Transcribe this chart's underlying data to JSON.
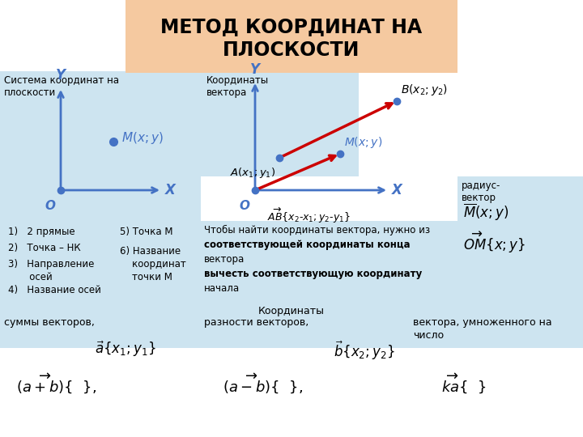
{
  "title": "МЕТОД КООРДИНАТ НА\nПЛОСКОСТИ",
  "title_bg": "#f5c9a0",
  "bg_color": "#ffffff",
  "panel_blue": "#cde4f0",
  "section1_label": "Система координат на\nплоскости",
  "section2_label": "Координаты\nвектора",
  "section3_label": "радиус-\nвектор",
  "list_left": [
    "1)   2 прямые",
    "2)   Точка – НК",
    "3)   Направление\n       осей",
    "4)   Название осей"
  ],
  "list_right": [
    "5) Точка М",
    "6) Название\n    координат\n    точки М"
  ],
  "right_text_lines": [
    {
      "text": "Чтобы найти координаты вектора, нужно из",
      "bold": false
    },
    {
      "text": "соответствующей координаты конца",
      "bold": true
    },
    {
      "text": "вектора",
      "bold": false
    },
    {
      "text": "вычесть соответствующую координату",
      "bold": true
    },
    {
      "text": "начала",
      "bold": false
    }
  ],
  "bottom_label": "Координаты",
  "bottom_sub1": "суммы векторов,",
  "bottom_sub2": "разности векторов,",
  "bottom_sub3": "вектора, умноженного на\nчисло",
  "axis_color": "#4472c4",
  "dot_color": "#4472c4",
  "red_color": "#cc0000"
}
